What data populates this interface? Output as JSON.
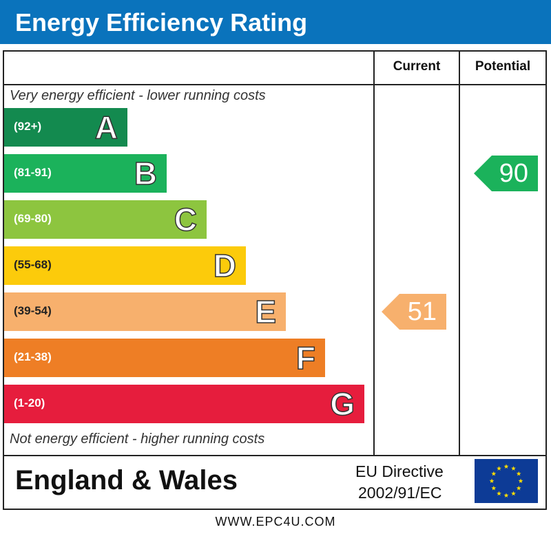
{
  "title": "Energy Efficiency Rating",
  "columns": {
    "current": "Current",
    "potential": "Potential"
  },
  "captions": {
    "top": "Very energy efficient - lower running costs",
    "bottom": "Not energy efficient - higher running costs"
  },
  "chart_data": {
    "type": "bar",
    "categories": [
      "A",
      "B",
      "C",
      "D",
      "E",
      "F",
      "G"
    ],
    "ranges": [
      "(92+)",
      "(81-91)",
      "(69-80)",
      "(55-68)",
      "(39-54)",
      "(21-38)",
      "(1-20)"
    ],
    "colors": [
      "#138a4f",
      "#1bb25b",
      "#8dc53f",
      "#fccb0b",
      "#f7b06d",
      "#ee7e25",
      "#e61d3d"
    ],
    "current": {
      "value": 51,
      "band": "E",
      "color": "#f7b06d"
    },
    "potential": {
      "value": 90,
      "band": "B",
      "color": "#1bb25b"
    }
  },
  "footer": {
    "region": "England & Wales",
    "directive_line1": "EU Directive",
    "directive_line2": "2002/91/EC",
    "flag_icon": "eu-flag-icon",
    "url": "WWW.EPC4U.COM"
  }
}
